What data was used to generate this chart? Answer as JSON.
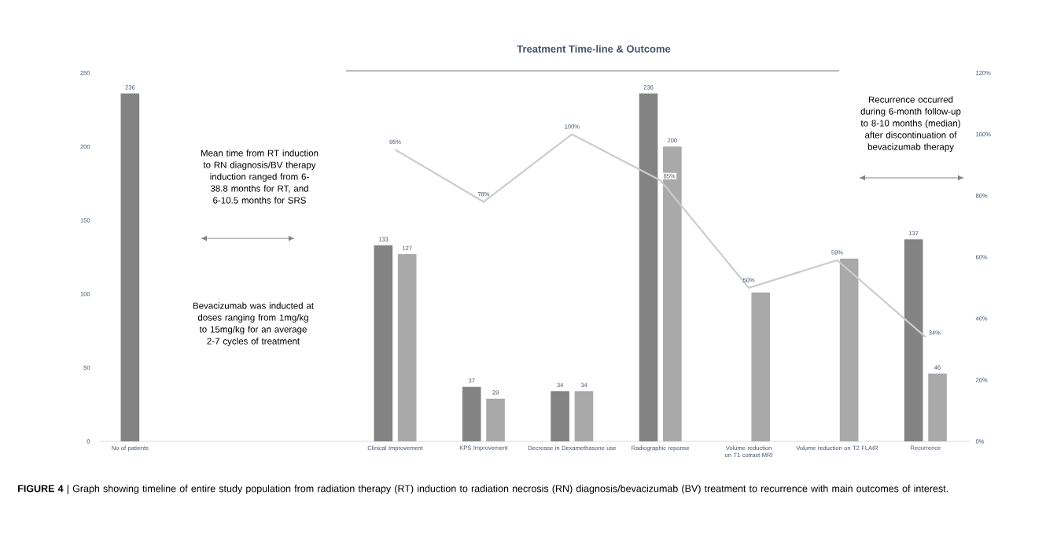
{
  "chart_data": {
    "type": "bar",
    "title": "Treatment Time-line & Outcome",
    "categories": [
      "No of patients",
      null,
      null,
      "Clinical Improvement",
      "KPS Improvement",
      "Decrease in Dexamethasone use",
      "Radiographic reponse",
      "Volume reduction on T1 cotrast MRI",
      "Volume reduction on T2 FLAIR",
      "Recurrence"
    ],
    "series": [
      {
        "color": "#838383",
        "values": [
          236,
          null,
          null,
          null,
          null,
          null,
          null,
          null,
          null,
          null
        ],
        "value_labels": [
          "236",
          null,
          null,
          null,
          null,
          null,
          null,
          null,
          null,
          null
        ]
      },
      {
        "color": "#838383",
        "values": [
          null,
          null,
          null,
          133,
          37,
          34,
          236,
          null,
          null,
          137
        ],
        "value_labels": [
          null,
          null,
          null,
          "133",
          "37",
          "34",
          "236",
          null,
          null,
          "137"
        ]
      },
      {
        "color": "#a9a9a9",
        "values": [
          null,
          null,
          null,
          127,
          29,
          34,
          200,
          101,
          124,
          46
        ],
        "value_labels": [
          null,
          null,
          null,
          "127",
          "29",
          "34",
          "200",
          null,
          null,
          "46"
        ]
      },
      {
        "type": "line",
        "axis": "y2",
        "color": "#cccccc",
        "values": [
          null,
          null,
          null,
          95,
          78,
          100,
          85,
          50,
          59,
          34
        ],
        "value_labels": [
          null,
          null,
          null,
          "95%",
          "78%",
          "100%",
          "85%",
          "50%",
          "59%",
          "34%"
        ]
      }
    ],
    "ylim": [
      0,
      250
    ],
    "yticks": [
      0,
      50,
      100,
      150,
      200,
      250
    ],
    "y2lim": [
      0,
      120
    ],
    "y2ticks": [
      {
        "value": 0,
        "label": "0%"
      },
      {
        "value": 20,
        "label": "20%"
      },
      {
        "value": 40,
        "label": "40%"
      },
      {
        "value": 60,
        "label": "60%"
      },
      {
        "value": 80,
        "label": "80%"
      },
      {
        "value": 100,
        "label": "100%"
      },
      {
        "value": 120,
        "label": "120%"
      }
    ],
    "annotations": [
      "Mean time from RT induction to RN diagnosis/BV therapy induction ranged from 6-38.8 months for RT, and 6-10.5 months for SRS",
      "Bevacizumab was inducted at doses ranging from 1mg/kg to 15mg/kg for an average 2-7 cycles of treatment",
      "Recurrence occurred during 6-month follow-up to 8-10 months (median) after discontinuation of bevacizumab therapy",
      "**FIGURE 4** | Graph showing timeline of entire study population from radiation therapy (RT) induction to radiation necrosis (RN) diagnosis/bevacizumab (BV) treatment to recurrence with main outcomes of interest."
    ],
    "grid": false,
    "legend": false,
    "marker": "none"
  }
}
